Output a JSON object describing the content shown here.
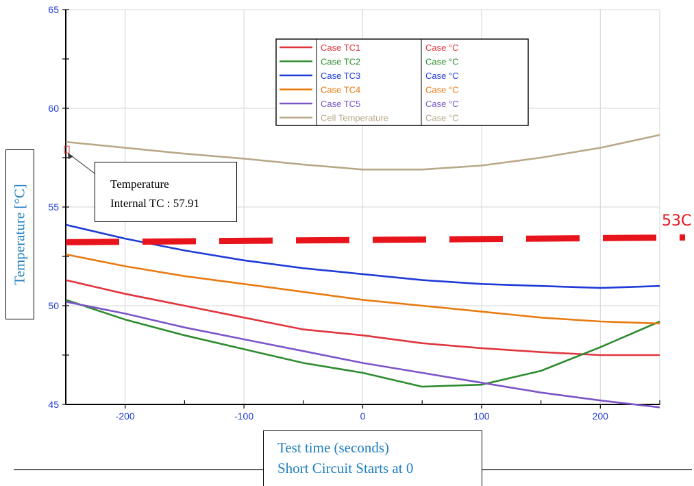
{
  "chart_data": {
    "type": "line",
    "title": "",
    "xlabel": [
      "Test time (seconds)",
      "Short Circuit Starts at 0"
    ],
    "ylabel": "Temperature [°C]",
    "xlim": [
      -250,
      250
    ],
    "ylim": [
      45,
      65
    ],
    "xticks": [
      -200,
      -100,
      0,
      100,
      200
    ],
    "yticks": [
      45,
      50,
      55,
      60,
      65
    ],
    "grid": true,
    "legend_position": "top-center",
    "series": [
      {
        "name": "Case TC1",
        "unit": "Case °C",
        "color": "#e0353f",
        "x": [
          -250,
          -200,
          -150,
          -100,
          -50,
          0,
          50,
          100,
          150,
          200,
          250
        ],
        "y": [
          51.3,
          50.6,
          50.0,
          49.4,
          48.8,
          48.5,
          48.1,
          47.85,
          47.65,
          47.5,
          47.5
        ]
      },
      {
        "name": "Case TC2",
        "unit": "Case °C",
        "color": "#2e8b2e",
        "x": [
          -250,
          -200,
          -150,
          -100,
          -50,
          0,
          50,
          100,
          150,
          200,
          250
        ],
        "y": [
          50.3,
          49.3,
          48.5,
          47.8,
          47.1,
          46.6,
          45.9,
          46.0,
          46.7,
          47.9,
          49.2
        ]
      },
      {
        "name": "Case TC3",
        "unit": "Case °C",
        "color": "#1f3bd6",
        "x": [
          -250,
          -200,
          -150,
          -100,
          -50,
          0,
          50,
          100,
          150,
          200,
          250
        ],
        "y": [
          54.1,
          53.4,
          52.8,
          52.3,
          51.9,
          51.6,
          51.3,
          51.1,
          51.0,
          50.9,
          51.0
        ]
      },
      {
        "name": "Case TC4",
        "unit": "Case °C",
        "color": "#e87a10",
        "x": [
          -250,
          -200,
          -150,
          -100,
          -50,
          0,
          50,
          100,
          150,
          200,
          250
        ],
        "y": [
          52.6,
          52.0,
          51.5,
          51.1,
          50.7,
          50.3,
          50.0,
          49.7,
          49.4,
          49.2,
          49.1
        ]
      },
      {
        "name": "Case TC5",
        "unit": "Case °C",
        "color": "#7b55c7",
        "x": [
          -250,
          -200,
          -150,
          -100,
          -50,
          0,
          50,
          100,
          150,
          200,
          250
        ],
        "y": [
          50.2,
          49.6,
          48.9,
          48.3,
          47.7,
          47.1,
          46.6,
          46.1,
          45.6,
          45.2,
          44.85
        ]
      },
      {
        "name": "Cell Temperature",
        "unit": "Case °C",
        "color": "#b9a888",
        "x": [
          -250,
          -200,
          -150,
          -100,
          -50,
          0,
          50,
          100,
          150,
          200,
          250
        ],
        "y": [
          58.3,
          58.0,
          57.7,
          57.45,
          57.15,
          56.9,
          56.9,
          57.1,
          57.5,
          58.0,
          58.65
        ]
      }
    ],
    "threshold": {
      "y": 53.25,
      "label": "53C",
      "color": "#e8141c",
      "style": "dashed"
    },
    "annotation": {
      "lines": [
        "Temperature",
        "Internal TC : 57.91"
      ],
      "x": -250,
      "y": 57.91
    }
  }
}
